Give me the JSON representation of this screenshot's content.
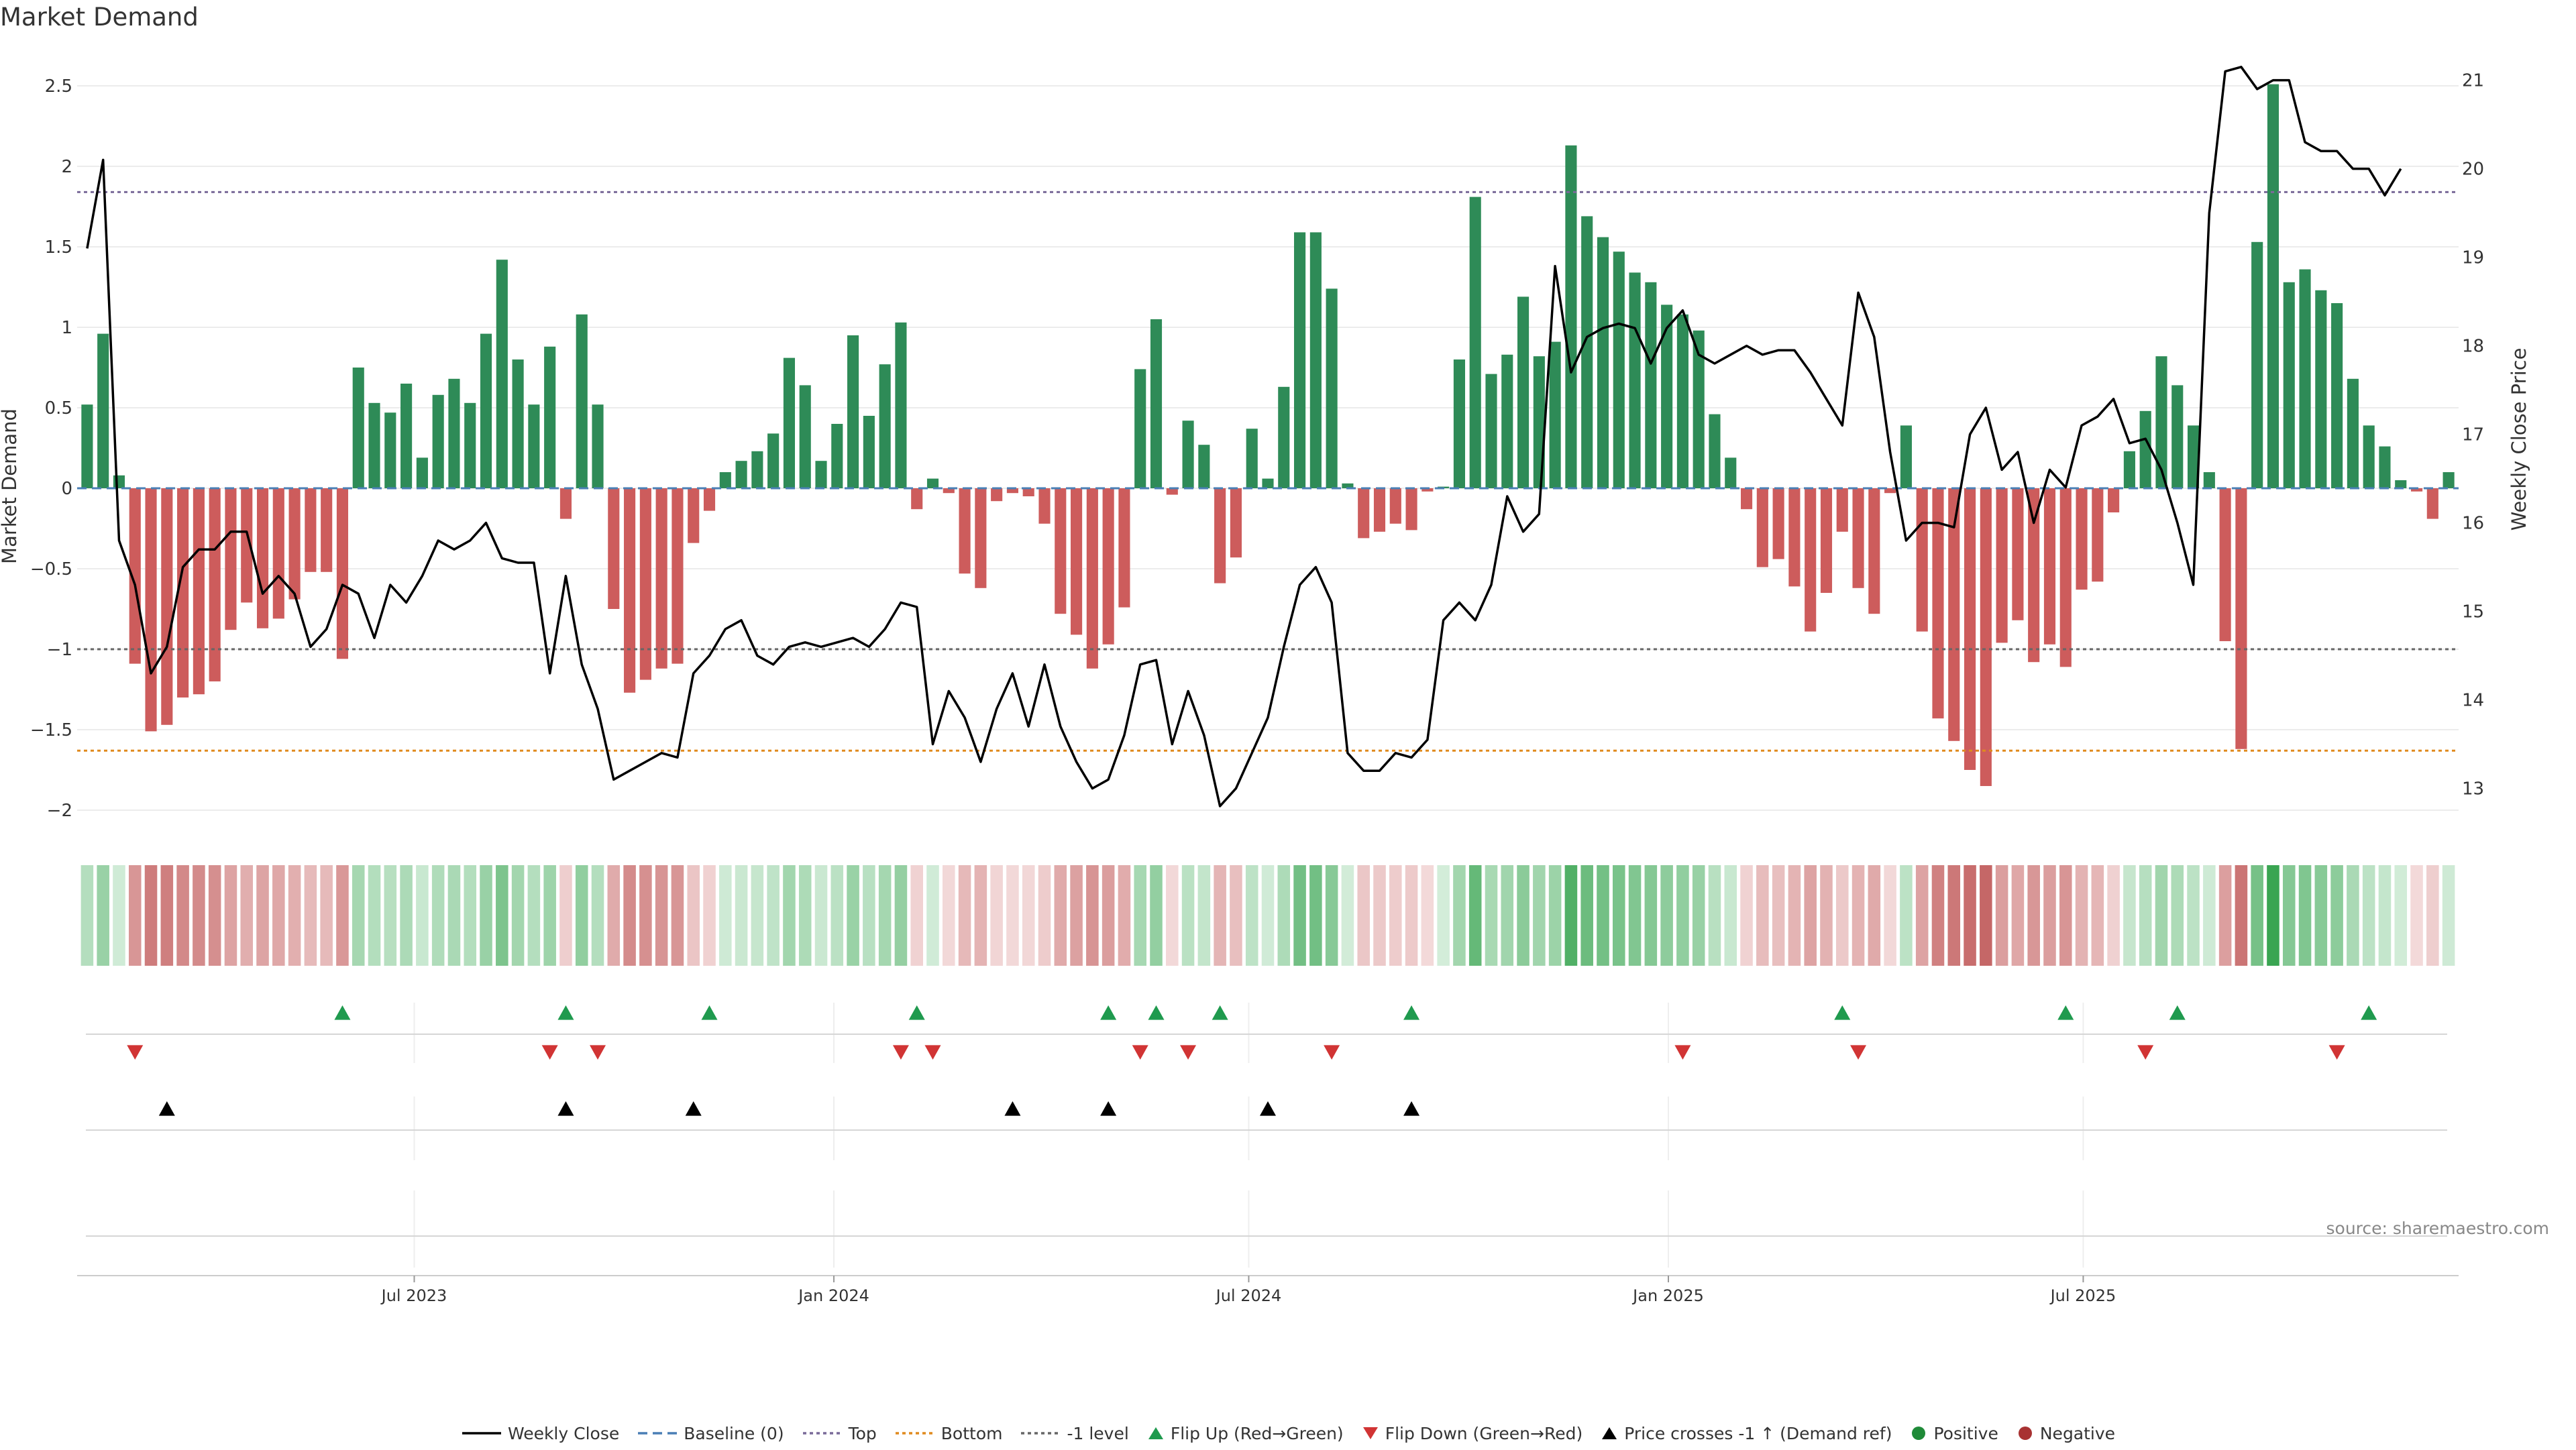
{
  "title": "Market Demand",
  "source_label": "source: sharemaestro.com",
  "legend": [
    {
      "label": "Weekly Close",
      "kind": "line",
      "color": "#000000",
      "dash": ""
    },
    {
      "label": "Baseline (0)",
      "kind": "line",
      "color": "#4a7fb5",
      "dash": "14,8"
    },
    {
      "label": "Top",
      "kind": "line",
      "color": "#7a6a99",
      "dash": "5,5"
    },
    {
      "label": "Bottom",
      "kind": "line",
      "color": "#e08a1e",
      "dash": "5,5"
    },
    {
      "label": "-1 level",
      "kind": "line",
      "color": "#666666",
      "dash": "5,5"
    },
    {
      "label": "Flip Up (Red→Green)",
      "kind": "tri-up",
      "color": "#1f9a4e"
    },
    {
      "label": "Flip Down (Green→Red)",
      "kind": "tri-down",
      "color": "#d13434"
    },
    {
      "label": "Price crosses -1 ↑ (Demand ref)",
      "kind": "tri-up",
      "color": "#000000"
    },
    {
      "label": "Positive",
      "kind": "dot",
      "color": "#1f8a38"
    },
    {
      "label": "Negative",
      "kind": "dot",
      "color": "#a83232"
    }
  ],
  "chart_data": {
    "type": "bar",
    "title": "Market Demand",
    "ylabel": "Market Demand",
    "y2label": "Weekly Close Price",
    "ylim": [
      -2.25,
      2.7
    ],
    "y2lim": [
      12.3,
      21.3
    ],
    "yticks": [
      -2,
      -1.5,
      -1,
      -0.5,
      0,
      0.5,
      1,
      1.5,
      2,
      2.5
    ],
    "ytick_labels": [
      "−2",
      "−1.5",
      "−1",
      "−0.5",
      "0",
      "0.5",
      "1",
      "1.5",
      "2",
      "2.5"
    ],
    "y2ticks": [
      13,
      14,
      15,
      16,
      17,
      18,
      19,
      20,
      21
    ],
    "y2tick_labels": [
      "13",
      "14",
      "15",
      "16",
      "17",
      "18",
      "19",
      "20",
      "21"
    ],
    "xticks": [
      {
        "label": "Jul 2023",
        "week": 20.5
      },
      {
        "label": "Jan 2024",
        "week": 46.8
      },
      {
        "label": "Jul 2024",
        "week": 72.8
      },
      {
        "label": "Jan 2025",
        "week": 99.1
      },
      {
        "label": "Jul 2025",
        "week": 125.1
      }
    ],
    "levels": {
      "baseline": 0,
      "top": 1.84,
      "bottom": -1.63,
      "minus_one": -1
    },
    "colors": {
      "positive": "#2e8b57",
      "negative": "#cd5c5c",
      "close": "#000000"
    },
    "demand": [
      0.52,
      0.96,
      0.08,
      -1.09,
      -1.51,
      -1.47,
      -1.3,
      -1.28,
      -1.2,
      -0.88,
      -0.71,
      -0.87,
      -0.81,
      -0.69,
      -0.52,
      -0.52,
      -1.06,
      0.75,
      0.53,
      0.47,
      0.65,
      0.19,
      0.58,
      0.68,
      0.53,
      0.96,
      1.42,
      0.8,
      0.52,
      0.88,
      -0.19,
      1.08,
      0.52,
      -0.75,
      -1.27,
      -1.19,
      -1.12,
      -1.09,
      -0.34,
      -0.14,
      0.1,
      0.17,
      0.23,
      0.34,
      0.81,
      0.64,
      0.17,
      0.4,
      0.95,
      0.45,
      0.77,
      1.03,
      -0.13,
      0.06,
      -0.03,
      -0.53,
      -0.62,
      -0.08,
      -0.03,
      -0.05,
      -0.22,
      -0.78,
      -0.91,
      -1.12,
      -0.97,
      -0.74,
      0.74,
      1.05,
      -0.04,
      0.42,
      0.27,
      -0.59,
      -0.43,
      0.37,
      0.06,
      0.63,
      1.59,
      1.59,
      1.24,
      0.03,
      -0.31,
      -0.27,
      -0.22,
      -0.26,
      -0.02,
      0.01,
      0.8,
      1.81,
      0.71,
      0.83,
      1.19,
      0.82,
      0.91,
      2.13,
      1.69,
      1.56,
      1.47,
      1.34,
      1.28,
      1.14,
      1.08,
      0.98,
      0.46,
      0.19,
      -0.13,
      -0.49,
      -0.44,
      -0.61,
      -0.89,
      -0.65,
      -0.27,
      -0.62,
      -0.78,
      -0.03,
      0.39,
      -0.89,
      -1.43,
      -1.57,
      -1.75,
      -1.85,
      -0.96,
      -0.82,
      -1.08,
      -0.97,
      -1.11,
      -0.63,
      -0.58,
      -0.15,
      0.23,
      0.48,
      0.82,
      0.64,
      0.39,
      0.1,
      -0.95,
      -1.62,
      1.53,
      2.51,
      1.28,
      1.36,
      1.23,
      1.15,
      0.68,
      0.39,
      0.26,
      0.05,
      -0.02,
      -0.19,
      0.1
    ],
    "close": [
      19.1,
      20.1,
      15.8,
      15.3,
      14.3,
      14.6,
      15.5,
      15.7,
      15.7,
      15.9,
      15.9,
      15.2,
      15.4,
      15.2,
      14.6,
      14.8,
      15.3,
      15.2,
      14.7,
      15.3,
      15.1,
      15.4,
      15.8,
      15.7,
      15.8,
      16.0,
      15.6,
      15.55,
      15.55,
      14.3,
      15.4,
      14.4,
      13.9,
      13.1,
      13.2,
      13.3,
      13.4,
      13.35,
      14.3,
      14.5,
      14.8,
      14.9,
      14.5,
      14.4,
      14.6,
      14.65,
      14.6,
      14.65,
      14.7,
      14.6,
      14.8,
      15.1,
      15.05,
      13.5,
      14.1,
      13.8,
      13.3,
      13.9,
      14.3,
      13.7,
      14.4,
      13.7,
      13.3,
      13.0,
      13.1,
      13.6,
      14.4,
      14.45,
      13.5,
      14.1,
      13.6,
      12.8,
      13.0,
      13.4,
      13.8,
      14.6,
      15.3,
      15.5,
      15.1,
      13.4,
      13.2,
      13.2,
      13.4,
      13.35,
      13.55,
      14.9,
      15.1,
      14.9,
      15.3,
      16.3,
      15.9,
      16.1,
      18.9,
      17.7,
      18.1,
      18.2,
      18.25,
      18.2,
      17.8,
      18.2,
      18.4,
      17.9,
      17.8,
      17.9,
      18.0,
      17.9,
      17.95,
      17.95,
      17.7,
      17.4,
      17.1,
      18.6,
      18.1,
      16.8,
      15.8,
      16.0,
      16.0,
      15.95,
      17.0,
      17.3,
      16.6,
      16.8,
      16.0,
      16.6,
      16.4,
      17.1,
      17.2,
      17.4,
      16.9,
      16.95,
      16.6,
      16.0,
      15.3,
      19.5,
      21.1,
      21.15,
      20.9,
      21.0,
      21.0,
      20.3,
      20.2,
      20.2,
      20.0,
      20.0,
      19.7,
      20.0
    ],
    "flip_up_weeks": [
      16,
      30,
      39,
      52,
      64,
      67,
      71,
      83,
      110,
      124,
      131,
      143
    ],
    "flip_down_weeks": [
      3,
      29,
      32,
      51,
      53,
      66,
      69,
      78,
      100,
      111,
      129,
      141
    ],
    "price_cross_weeks": [
      5,
      30,
      38,
      58,
      64,
      74,
      83
    ]
  }
}
